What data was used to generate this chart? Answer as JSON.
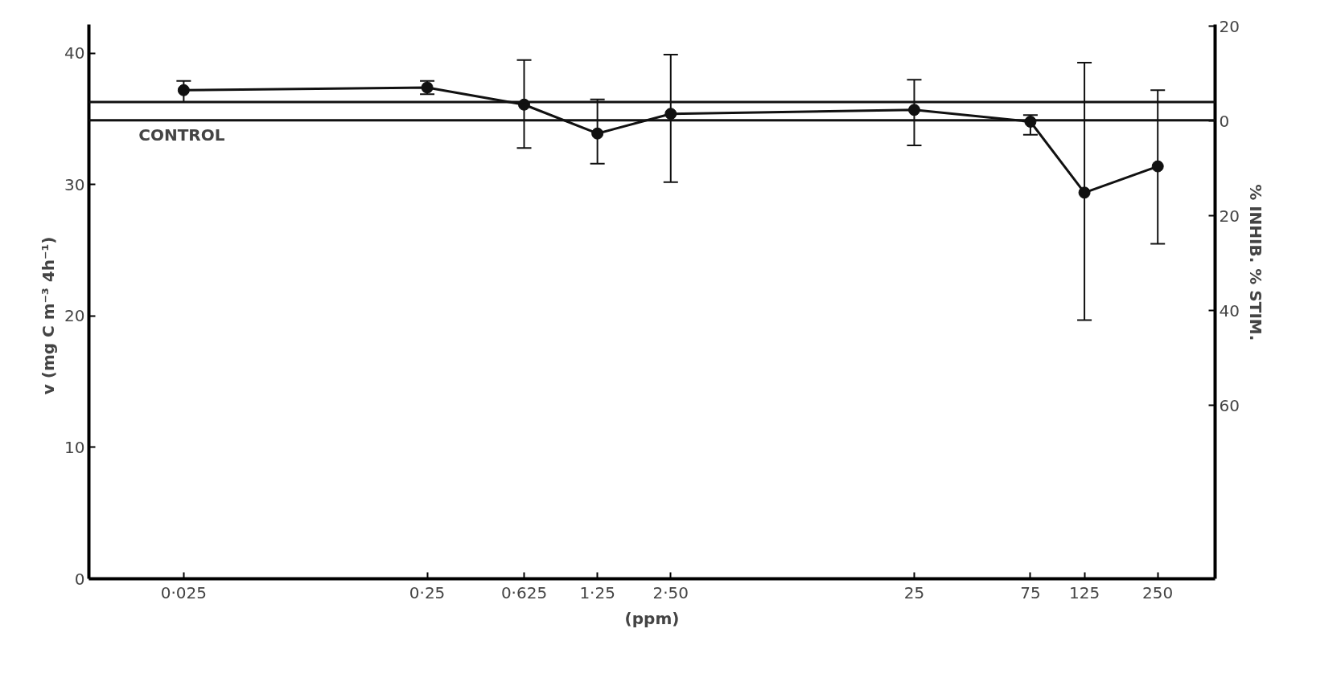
{
  "chart_data": {
    "type": "line",
    "xlabel": "(ppm)",
    "ylabel": "v      (mg C m⁻³ 4h⁻¹)",
    "y2label": "% INHIB.               % STIM.",
    "x": [
      0.025,
      0.25,
      0.625,
      1.25,
      2.5,
      25,
      75,
      125,
      250
    ],
    "series": [
      {
        "color": "#111111",
        "values": [
          37.2,
          37.4,
          36.1,
          33.9,
          35.4,
          35.7,
          34.8,
          29.4,
          31.4
        ],
        "errors": [
          [
            36.3,
            37.9
          ],
          [
            36.9,
            37.9
          ],
          [
            32.8,
            39.5
          ],
          [
            31.6,
            36.5
          ],
          [
            30.2,
            39.9
          ],
          [
            33.0,
            38.0
          ],
          [
            33.8,
            35.3
          ],
          [
            19.7,
            39.3
          ],
          [
            25.5,
            37.2
          ]
        ]
      }
    ],
    "log": "x",
    "xlim": [
      0.0102,
      430
    ],
    "xticks": [
      {
        "value": 0.025,
        "label": "0·025"
      },
      {
        "value": 0.25,
        "label": "0·25"
      },
      {
        "value": 0.625,
        "label": "0·625"
      },
      {
        "value": 1.25,
        "label": "1·25"
      },
      {
        "value": 2.5,
        "label": "2·50"
      },
      25,
      75,
      125,
      250
    ],
    "ylim": [
      0,
      42.2
    ],
    "yticks": [
      0,
      10,
      20,
      30,
      40
    ],
    "y2lim": [
      -96.6,
      20.4
    ],
    "y2ticks": [
      20,
      0,
      {
        "value": -20,
        "label": "20"
      },
      {
        "value": -40,
        "label": "40"
      },
      {
        "value": -60,
        "label": "60"
      }
    ],
    "ref_lines": [
      {
        "axis": "y",
        "value": 36.3,
        "color": "#111111"
      },
      {
        "axis": "y",
        "value": 34.9,
        "label": "CONTROL",
        "color": "#111111"
      }
    ],
    "marker": "circle",
    "line_style": "solid",
    "grid": false
  }
}
